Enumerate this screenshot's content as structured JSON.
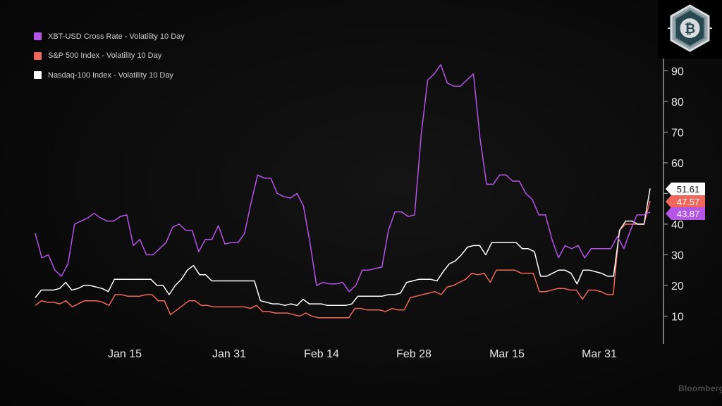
{
  "chart_data": {
    "type": "line",
    "x_ticks": [
      "Jan 15",
      "Jan 31",
      "Feb 14",
      "Feb 28",
      "Mar 15",
      "Mar 31"
    ],
    "y_ticks": [
      10,
      20,
      30,
      40,
      50,
      60,
      70,
      80,
      90
    ],
    "ylim": [
      0,
      94
    ],
    "y_axis_side": "right",
    "grid": false,
    "legend_position": "top-left",
    "series": [
      {
        "name": "XBT-USD Cross Rate - Volatility 10 Day",
        "color": "#b455e6",
        "last_value": "43.87",
        "values": [
          37,
          29,
          30,
          25,
          23,
          27,
          40,
          41,
          42,
          43.5,
          42,
          41,
          41,
          42.5,
          43,
          33,
          35,
          30,
          30,
          32,
          34,
          39,
          40,
          38,
          38,
          31,
          35,
          35,
          39.5,
          33.5,
          34,
          34,
          37,
          47,
          56,
          55,
          55,
          50,
          49,
          48.5,
          50,
          46,
          34,
          20,
          21,
          20.5,
          20.5,
          21,
          18,
          20,
          25,
          25,
          25.5,
          26,
          38,
          44,
          44,
          42.5,
          43,
          69,
          87,
          89,
          92,
          86,
          85,
          85,
          87,
          89,
          68,
          53,
          53,
          56,
          56,
          54,
          54,
          50,
          48,
          43,
          43,
          35,
          29,
          33,
          32,
          33,
          29,
          32,
          32,
          32,
          32,
          36,
          32,
          38,
          43,
          43,
          43.87
        ]
      },
      {
        "name": "S&P 500 Index - Volatility 10 Day",
        "color": "#f0675c",
        "last_value": "47.57",
        "values": [
          13.5,
          15,
          14.5,
          14.5,
          14,
          15,
          13,
          14,
          15,
          15,
          15,
          14.5,
          13.5,
          17,
          17,
          16.5,
          16.5,
          16.5,
          17,
          17,
          15,
          15,
          10.5,
          12,
          13.5,
          15,
          15,
          13.5,
          13.5,
          13,
          13,
          13,
          13,
          13,
          13,
          12.5,
          13.5,
          11.5,
          11.5,
          11,
          11,
          11,
          10.5,
          10,
          11,
          10,
          9.5,
          9.5,
          9.5,
          9.5,
          9.5,
          9.5,
          12.5,
          12.5,
          12,
          12,
          12,
          11.5,
          12.5,
          12,
          12,
          16,
          16.5,
          17,
          17.5,
          18,
          17,
          19.5,
          20,
          21,
          22,
          24,
          23.5,
          24,
          21,
          25,
          25,
          25,
          25,
          24,
          24,
          24,
          18,
          18,
          18.5,
          19,
          19,
          18.5,
          18.5,
          15.5,
          18.5,
          18.5,
          18,
          17,
          17,
          38,
          40,
          40,
          40,
          40,
          47.57
        ]
      },
      {
        "name": "Nasdaq-100 Index - Volatility 10 Day",
        "color": "#ffffff",
        "last_value": "51.61",
        "values": [
          16,
          18.5,
          18.5,
          18.5,
          19,
          21,
          18.5,
          19,
          20,
          20,
          19.5,
          19,
          18,
          22,
          22,
          22,
          22,
          22,
          22,
          22,
          20,
          20,
          17,
          20,
          22,
          25,
          26.5,
          23.5,
          23.5,
          21.5,
          21.5,
          21.5,
          21.5,
          21.5,
          21.5,
          21.5,
          21.5,
          15,
          14.5,
          14,
          14,
          13.5,
          14,
          13.5,
          15.5,
          14,
          14,
          14,
          13.5,
          13.5,
          13.5,
          13.5,
          14,
          16.5,
          16.5,
          16.5,
          16.5,
          16.5,
          17,
          17,
          17.5,
          21,
          21.5,
          22,
          22,
          22,
          21.5,
          24.5,
          27,
          28,
          30,
          32.5,
          33,
          33,
          30,
          34,
          34,
          34,
          34,
          34,
          32,
          32,
          31,
          23,
          23,
          24,
          25,
          25,
          24,
          20.5,
          25,
          25,
          24.5,
          24,
          23,
          23,
          38,
          41,
          41,
          40,
          40,
          51.61
        ]
      }
    ]
  },
  "watermark": "Bloomberg",
  "badge_icon": "bitcoin-icon"
}
